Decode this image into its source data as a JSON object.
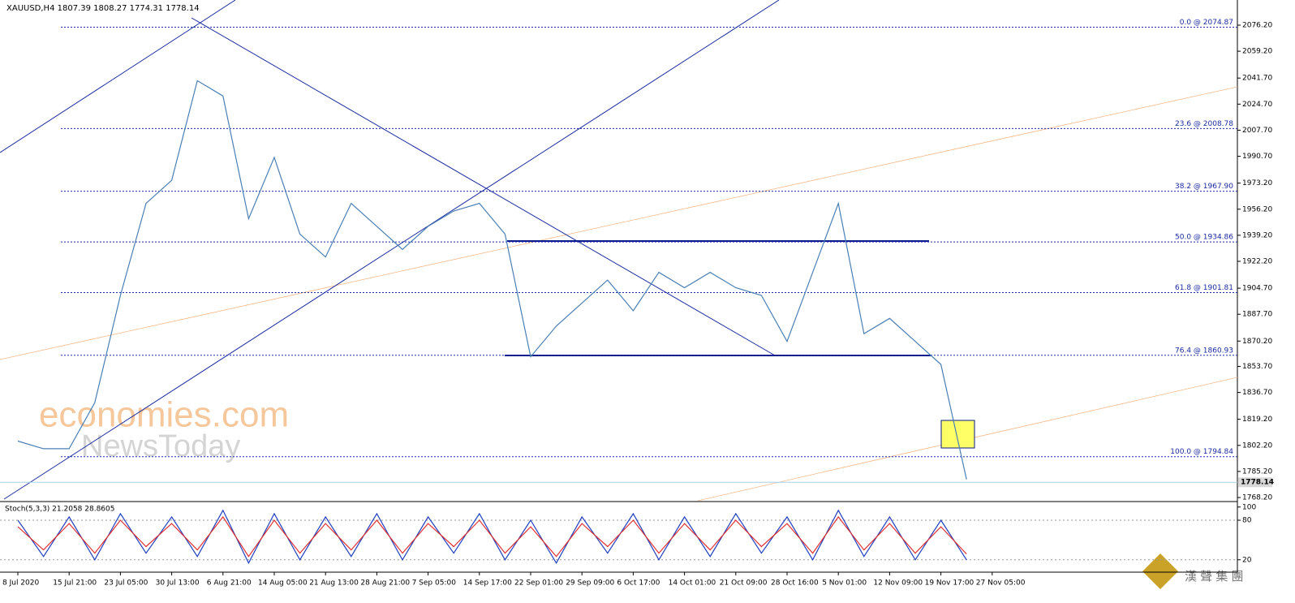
{
  "chart_data": [
    {
      "type": "line",
      "title": "XAUUSD,H4  1807.39 1808.27 1774.31 1778.14",
      "categories": [
        "8 Jul 2020",
        null,
        "15 Jul 21:00",
        null,
        "23 Jul 05:00",
        null,
        "30 Jul 13:00",
        null,
        "6 Aug 21:00",
        null,
        "14 Aug 05:00",
        null,
        "21 Aug 13:00",
        null,
        "28 Aug 21:00",
        null,
        "7 Sep 05:00",
        null,
        "14 Sep 17:00",
        null,
        "22 Sep 01:00",
        null,
        "29 Sep 09:00",
        null,
        "6 Oct 17:00",
        null,
        "14 Oct 01:00",
        null,
        "21 Oct 09:00",
        null,
        "28 Oct 16:00",
        null,
        "5 Nov 01:00",
        null,
        "12 Nov 09:00",
        null,
        "19 Nov 17:00",
        null,
        "27 Nov 05:00",
        null
      ],
      "series": [
        {
          "color": "#4a7fb5",
          "values": [
            1805,
            1800,
            1800,
            1830,
            1900,
            1960,
            1975,
            2040,
            2030,
            1950,
            1990,
            1940,
            1925,
            1960,
            1945,
            1930,
            1945,
            1955,
            1960,
            1940,
            1860,
            1880,
            1895,
            1910,
            1890,
            1915,
            1905,
            1915,
            1905,
            1900,
            1870,
            1915,
            1960,
            1875,
            1885,
            1870,
            1855,
            1780,
            null,
            null
          ]
        }
      ],
      "ylim": [
        1766.1,
        2092.6
      ],
      "yticks": [
        {
          "value": 2076.2,
          "label": "2076.20"
        },
        {
          "value": 2059.2,
          "label": "2059.20"
        },
        {
          "value": 2041.7,
          "label": "2041.70"
        },
        {
          "value": 2024.7,
          "label": "2024.70"
        },
        {
          "value": 2007.7,
          "label": "2007.70"
        },
        {
          "value": 1990.7,
          "label": "1990.70"
        },
        {
          "value": 1973.2,
          "label": "1973.20"
        },
        {
          "value": 1956.2,
          "label": "1956.20"
        },
        {
          "value": 1939.2,
          "label": "1939.20"
        },
        {
          "value": 1922.2,
          "label": "1922.20"
        },
        {
          "value": 1904.7,
          "label": "1904.70"
        },
        {
          "value": 1887.7,
          "label": "1887.70"
        },
        {
          "value": 1870.2,
          "label": "1870.20"
        },
        {
          "value": 1853.7,
          "label": "1853.70"
        },
        {
          "value": 1836.7,
          "label": "1836.70"
        },
        {
          "value": 1819.2,
          "label": "1819.20"
        },
        {
          "value": 1802.2,
          "label": "1802.20"
        },
        {
          "value": 1785.2,
          "label": "1785.20"
        },
        {
          "value": 1768.2,
          "label": "1768.20"
        }
      ],
      "annotations": [
        {
          "label": "0.0 @ 2074.87",
          "value": 2074.87
        },
        {
          "label": "23.6 @ 2008.78",
          "value": 2008.78
        },
        {
          "label": "38.2 @ 1967.90",
          "value": 1967.9
        },
        {
          "label": "50.0 @ 1934.86",
          "value": 1934.86
        },
        {
          "label": "61.8 @ 1901.81",
          "value": 1901.81
        },
        {
          "label": "76.4 @ 1860.93",
          "value": 1860.93
        },
        {
          "label": "100.0 @ 1794.84",
          "value": 1794.84
        }
      ],
      "last_price": {
        "value": 1778.14,
        "label": "1778.14"
      },
      "watermark": [
        "economies.com",
        "NewsToday",
        "漢 聲 集 團"
      ]
    },
    {
      "type": "line",
      "title": "Stoch(5,3,3) 21.2058 28.8605",
      "series": [
        {
          "color": "#1f3fbf",
          "values": [
            80,
            25,
            85,
            20,
            90,
            30,
            85,
            25,
            95,
            15,
            90,
            20,
            85,
            25,
            90,
            20,
            85,
            30,
            90,
            20,
            80,
            15,
            85,
            30,
            90,
            20,
            85,
            25,
            90,
            30,
            85,
            20,
            95,
            25,
            85,
            20,
            80,
            20,
            null,
            null
          ]
        },
        {
          "color": "#e03030",
          "values": [
            70,
            35,
            75,
            30,
            80,
            40,
            75,
            35,
            85,
            25,
            80,
            30,
            75,
            35,
            80,
            30,
            75,
            40,
            80,
            30,
            70,
            25,
            75,
            40,
            80,
            30,
            75,
            35,
            80,
            40,
            75,
            30,
            85,
            35,
            75,
            30,
            70,
            28.8605,
            null,
            null
          ]
        }
      ],
      "ylim": [
        0,
        100
      ],
      "yticks": [
        20,
        80,
        100
      ]
    }
  ]
}
